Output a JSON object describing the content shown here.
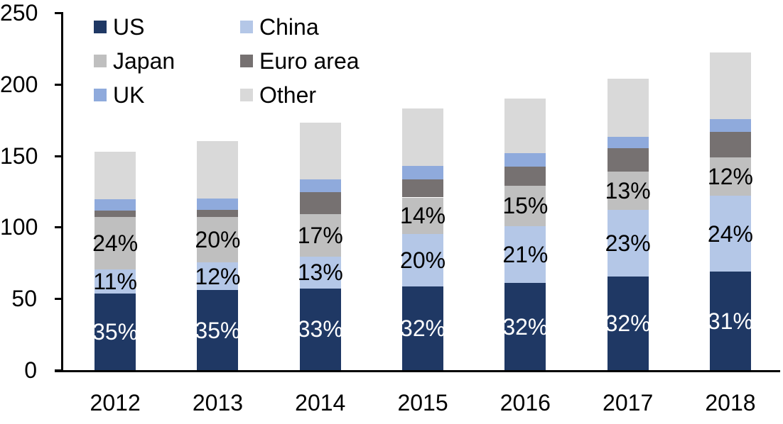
{
  "chart_data": {
    "type": "bar",
    "subtype": "stacked-column",
    "title": "",
    "categories": [
      "2012",
      "2013",
      "2014",
      "2015",
      "2016",
      "2017",
      "2018"
    ],
    "totals": [
      153,
      160,
      173,
      183,
      190,
      204,
      222
    ],
    "series": [
      {
        "name": "US",
        "color": "#1F3864",
        "shares_pct": [
          35,
          35,
          33,
          32,
          32,
          32,
          31
        ],
        "show_labels": true,
        "label_color": "#FFFFFF",
        "label_suffix": "%"
      },
      {
        "name": "China",
        "color": "#B4C7E7",
        "shares_pct": [
          11,
          12,
          13,
          20,
          21,
          23,
          24
        ],
        "show_labels": true,
        "label_color": "#000000",
        "label_suffix": "%"
      },
      {
        "name": "Japan",
        "color": "#BFBFBF",
        "shares_pct": [
          24,
          20,
          17,
          14,
          15,
          13,
          12
        ],
        "show_labels": true,
        "label_color": "#000000",
        "label_suffix": "%"
      },
      {
        "name": "Euro area",
        "color": "#767171",
        "shares_pct": [
          3,
          3,
          9,
          7,
          7,
          8,
          8
        ],
        "show_labels": false,
        "label_color": "#000000",
        "label_suffix": "%"
      },
      {
        "name": "UK",
        "color": "#8FAADC",
        "shares_pct": [
          5,
          5,
          5,
          5,
          5,
          4,
          4
        ],
        "show_labels": false,
        "label_color": "#000000",
        "label_suffix": "%"
      },
      {
        "name": "Other",
        "color": "#D9D9D9",
        "shares_pct": [
          22,
          25,
          23,
          22,
          20,
          20,
          21
        ],
        "show_labels": false,
        "label_color": "#000000",
        "label_suffix": "%"
      }
    ],
    "stack_order_bottom_to_top": [
      "US",
      "China",
      "Japan",
      "Euro area",
      "UK",
      "Other"
    ],
    "y_axis": {
      "min": 0,
      "max": 250,
      "tick_step": 50,
      "tick_labels": [
        "0",
        "50",
        "100",
        "150",
        "200",
        "250"
      ]
    },
    "x_axis": {
      "tick_labels": [
        "2012",
        "2013",
        "2014",
        "2015",
        "2016",
        "2017",
        "2018"
      ]
    },
    "legend": {
      "position": "top-left",
      "columns": [
        [
          "US",
          "Japan",
          "UK"
        ],
        [
          "China",
          "Euro area",
          "Other"
        ]
      ]
    },
    "grid": false,
    "background_color": "#FFFFFF",
    "axis_color": "#000000"
  }
}
